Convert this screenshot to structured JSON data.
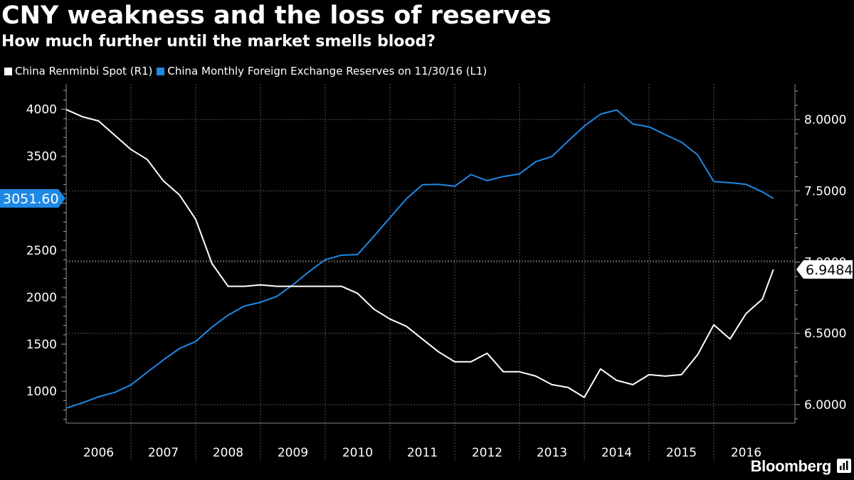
{
  "title": "CNY weakness and the loss of reserves",
  "subtitle": "How much further until the market smells blood?",
  "legend": [
    {
      "label": "China Renminbi Spot  (R1)",
      "color": "#ffffff"
    },
    {
      "label": "China Monthly Foreign Exchange Reserves  on 11/30/16 (L1)",
      "color": "#1e88e5"
    }
  ],
  "brand": "Bloomberg",
  "chart_data": {
    "type": "line",
    "x_years": [
      "2006",
      "2007",
      "2008",
      "2009",
      "2010",
      "2011",
      "2012",
      "2013",
      "2014",
      "2015",
      "2016"
    ],
    "left_axis": {
      "ticks": [
        "1000",
        "1500",
        "2000",
        "2500",
        "3000",
        "3500",
        "4000"
      ],
      "min": 660,
      "max": 4270
    },
    "right_axis": {
      "ticks": [
        "6.0000",
        "6.5000",
        "7.0000",
        "7.5000",
        "8.0000"
      ],
      "min": 5.87,
      "max": 8.25
    },
    "last_value_labels": {
      "reserves": "3051.60",
      "renminbi": "6.9484"
    },
    "grid": true,
    "series": [
      {
        "name": "China Monthly Foreign Exchange Reserves  on 11/30/16 (L1)",
        "axis": "left",
        "color": "#1e88e5",
        "values": [
          [
            2006.0,
            820
          ],
          [
            2006.25,
            875
          ],
          [
            2006.5,
            941
          ],
          [
            2006.75,
            987
          ],
          [
            2007.0,
            1066
          ],
          [
            2007.25,
            1202
          ],
          [
            2007.5,
            1332
          ],
          [
            2007.75,
            1455
          ],
          [
            2008.0,
            1528
          ],
          [
            2008.25,
            1682
          ],
          [
            2008.5,
            1809
          ],
          [
            2008.75,
            1906
          ],
          [
            2009.0,
            1946
          ],
          [
            2009.25,
            2008
          ],
          [
            2009.5,
            2131
          ],
          [
            2009.75,
            2273
          ],
          [
            2010.0,
            2399
          ],
          [
            2010.25,
            2447
          ],
          [
            2010.5,
            2454
          ],
          [
            2010.75,
            2648
          ],
          [
            2011.0,
            2847
          ],
          [
            2011.25,
            3045
          ],
          [
            2011.5,
            3197
          ],
          [
            2011.75,
            3201
          ],
          [
            2012.0,
            3181
          ],
          [
            2012.25,
            3305
          ],
          [
            2012.5,
            3240
          ],
          [
            2012.75,
            3285
          ],
          [
            2013.0,
            3312
          ],
          [
            2013.25,
            3442
          ],
          [
            2013.5,
            3497
          ],
          [
            2013.75,
            3662
          ],
          [
            2014.0,
            3821
          ],
          [
            2014.25,
            3948
          ],
          [
            2014.5,
            3993
          ],
          [
            2014.75,
            3843
          ],
          [
            2015.0,
            3813
          ],
          [
            2015.25,
            3730
          ],
          [
            2015.5,
            3650
          ],
          [
            2015.75,
            3514
          ],
          [
            2016.0,
            3230
          ],
          [
            2016.25,
            3219
          ],
          [
            2016.5,
            3201
          ],
          [
            2016.75,
            3121
          ],
          [
            2016.92,
            3051.6
          ]
        ]
      },
      {
        "name": "China Renminbi Spot  (R1)",
        "axis": "right",
        "color": "#ffffff",
        "values": [
          [
            2006.0,
            8.07
          ],
          [
            2006.25,
            8.02
          ],
          [
            2006.5,
            7.99
          ],
          [
            2006.75,
            7.89
          ],
          [
            2007.0,
            7.79
          ],
          [
            2007.25,
            7.72
          ],
          [
            2007.5,
            7.57
          ],
          [
            2007.75,
            7.47
          ],
          [
            2008.0,
            7.3
          ],
          [
            2008.25,
            6.99
          ],
          [
            2008.5,
            6.83
          ],
          [
            2008.75,
            6.83
          ],
          [
            2009.0,
            6.84
          ],
          [
            2009.25,
            6.83
          ],
          [
            2009.5,
            6.83
          ],
          [
            2009.75,
            6.83
          ],
          [
            2010.0,
            6.83
          ],
          [
            2010.25,
            6.83
          ],
          [
            2010.5,
            6.78
          ],
          [
            2010.75,
            6.67
          ],
          [
            2011.0,
            6.6
          ],
          [
            2011.25,
            6.55
          ],
          [
            2011.5,
            6.46
          ],
          [
            2011.75,
            6.37
          ],
          [
            2012.0,
            6.3
          ],
          [
            2012.25,
            6.3
          ],
          [
            2012.5,
            6.36
          ],
          [
            2012.75,
            6.23
          ],
          [
            2013.0,
            6.23
          ],
          [
            2013.25,
            6.2
          ],
          [
            2013.5,
            6.14
          ],
          [
            2013.75,
            6.12
          ],
          [
            2014.0,
            6.05
          ],
          [
            2014.25,
            6.25
          ],
          [
            2014.5,
            6.17
          ],
          [
            2014.75,
            6.14
          ],
          [
            2015.0,
            6.21
          ],
          [
            2015.25,
            6.2
          ],
          [
            2015.5,
            6.21
          ],
          [
            2015.75,
            6.35
          ],
          [
            2016.0,
            6.56
          ],
          [
            2016.25,
            6.46
          ],
          [
            2016.5,
            6.64
          ],
          [
            2016.75,
            6.74
          ],
          [
            2016.92,
            6.9484
          ]
        ]
      }
    ]
  }
}
